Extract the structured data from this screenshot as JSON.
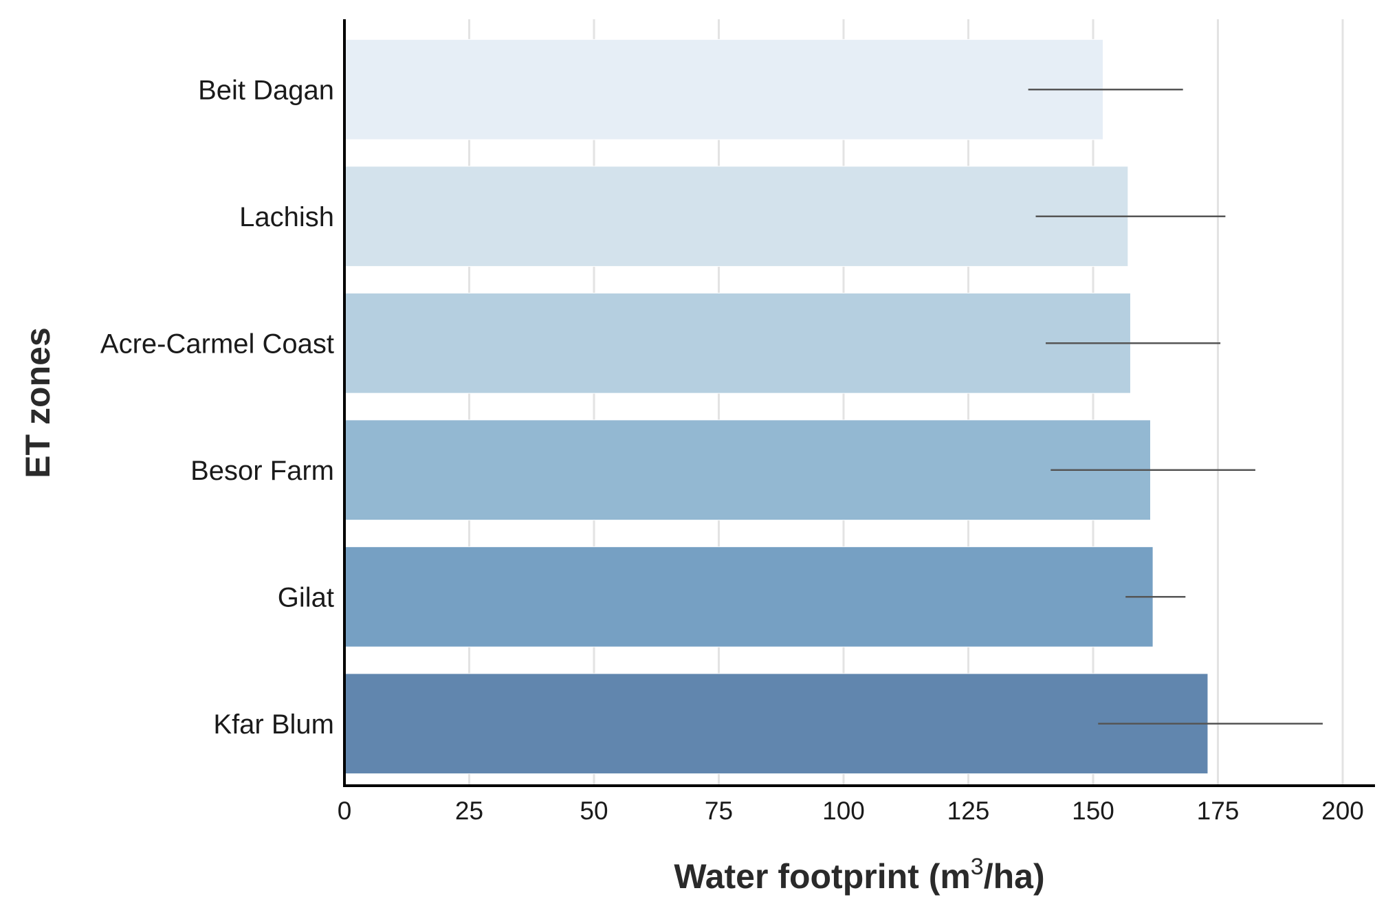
{
  "chart_data": {
    "type": "bar",
    "orientation": "horizontal",
    "categories": [
      "Beit Dagan",
      "Lachish",
      "Acre-Carmel Coast",
      "Besor Farm",
      "Gilat",
      "Kfar Blum"
    ],
    "values": [
      152,
      157,
      157.5,
      161.5,
      162,
      173
    ],
    "error_low": [
      137,
      138.5,
      140.5,
      141.5,
      156.5,
      151
    ],
    "error_high": [
      168,
      176.5,
      175.5,
      182.5,
      168.5,
      196
    ],
    "colors": [
      "#e6eef6",
      "#d3e2ec",
      "#b5cfe0",
      "#93b8d2",
      "#76a0c3",
      "#6186ae"
    ],
    "xlabel_main": "Water footprint (m",
    "xlabel_sup": "3",
    "xlabel_end": "/ha)",
    "ylabel": "ET zones",
    "xlim": [
      0,
      205
    ],
    "xticks": [
      0,
      25,
      50,
      75,
      100,
      125,
      150,
      175,
      200
    ],
    "grid": "vertical"
  }
}
